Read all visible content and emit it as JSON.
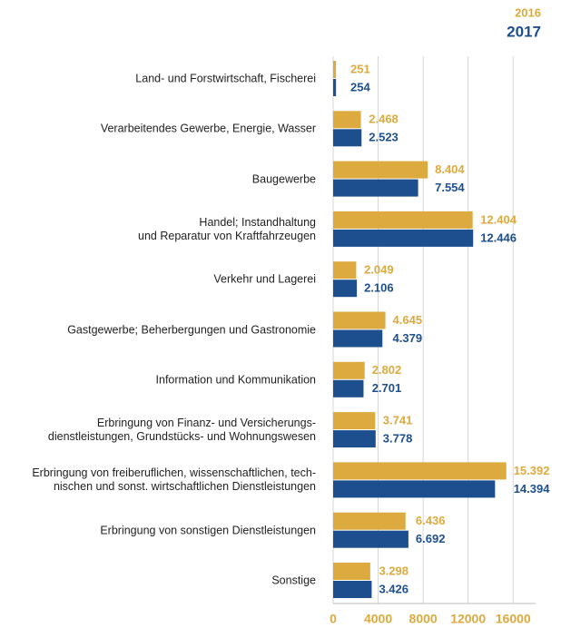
{
  "chart_data": {
    "type": "barh",
    "categories": [
      "Land- und Forstwirtschaft, Fischerei",
      "Verarbeitendes Gewerbe, Energie, Wasser",
      "Baugewerbe",
      "Handel; Instandhaltung\nund Reparatur von Kraftfahrzeugen",
      "Verkehr und Lagerei",
      "Gastgewerbe; Beherbergungen und Gastronomie",
      "Information und Kommunikation",
      "Erbringung von Finanz- und Versicherungs-\ndienstleistungen, Grundstücks- und Wohnungswesen",
      "Erbringung von freiberuflichen, wissenschaftlichen, tech-\nnischen und sonst. wirtschaftlichen Dienstleistungen",
      "Erbringung von sonstigen Dienstleistungen",
      "Sonstige"
    ],
    "series": [
      {
        "name": "2016",
        "color": "#dcaa3e",
        "values": [
          251,
          2468,
          8404,
          12404,
          2049,
          4645,
          2802,
          3741,
          15392,
          6436,
          3298
        ],
        "value_labels": [
          "251",
          "2.468",
          "8.404",
          "12.404",
          "2.049",
          "4.645",
          "2.802",
          "3.741",
          "15.392",
          "6.436",
          "3.298"
        ]
      },
      {
        "name": "2017",
        "color": "#1d4f8f",
        "values": [
          254,
          2523,
          7554,
          12446,
          2106,
          4379,
          2701,
          3778,
          14394,
          6692,
          3426
        ],
        "value_labels": [
          "254",
          "2.523",
          "7.554",
          "12.446",
          "2.106",
          "4.379",
          "2.701",
          "3.778",
          "14.394",
          "6.692",
          "3.426"
        ]
      }
    ],
    "xlim": [
      0,
      18000
    ],
    "xticks": [
      0,
      4000,
      8000,
      12000,
      16000
    ],
    "grid": true,
    "legend": "top-right"
  }
}
